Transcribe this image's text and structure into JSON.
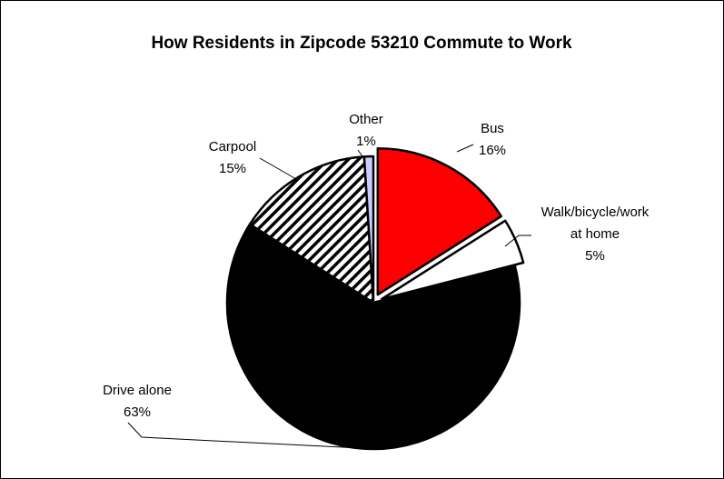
{
  "chart_data": {
    "type": "pie",
    "title": "How Residents in Zipcode 53210 Commute to Work",
    "slices": [
      {
        "label": "Bus",
        "value": 16,
        "value_text": "16%",
        "color": "#ff0000",
        "pattern": "solid",
        "exploded": true
      },
      {
        "label": "Walk/bicycle/work at home",
        "value": 5,
        "value_text": "5%",
        "color": "#ffffff",
        "pattern": "solid",
        "exploded": true
      },
      {
        "label": "Drive alone",
        "value": 63,
        "value_text": "63%",
        "color": "#000000",
        "pattern": "solid",
        "exploded": false
      },
      {
        "label": "Carpool",
        "value": 15,
        "value_text": "15%",
        "color": "#000000",
        "pattern": "diagonal-stripes",
        "exploded": false
      },
      {
        "label": "Other",
        "value": 1,
        "value_text": "1%",
        "color": "#ccccff",
        "pattern": "solid",
        "exploded": false
      }
    ],
    "legend": "none",
    "data_labels": "outside-with-leader-lines"
  }
}
